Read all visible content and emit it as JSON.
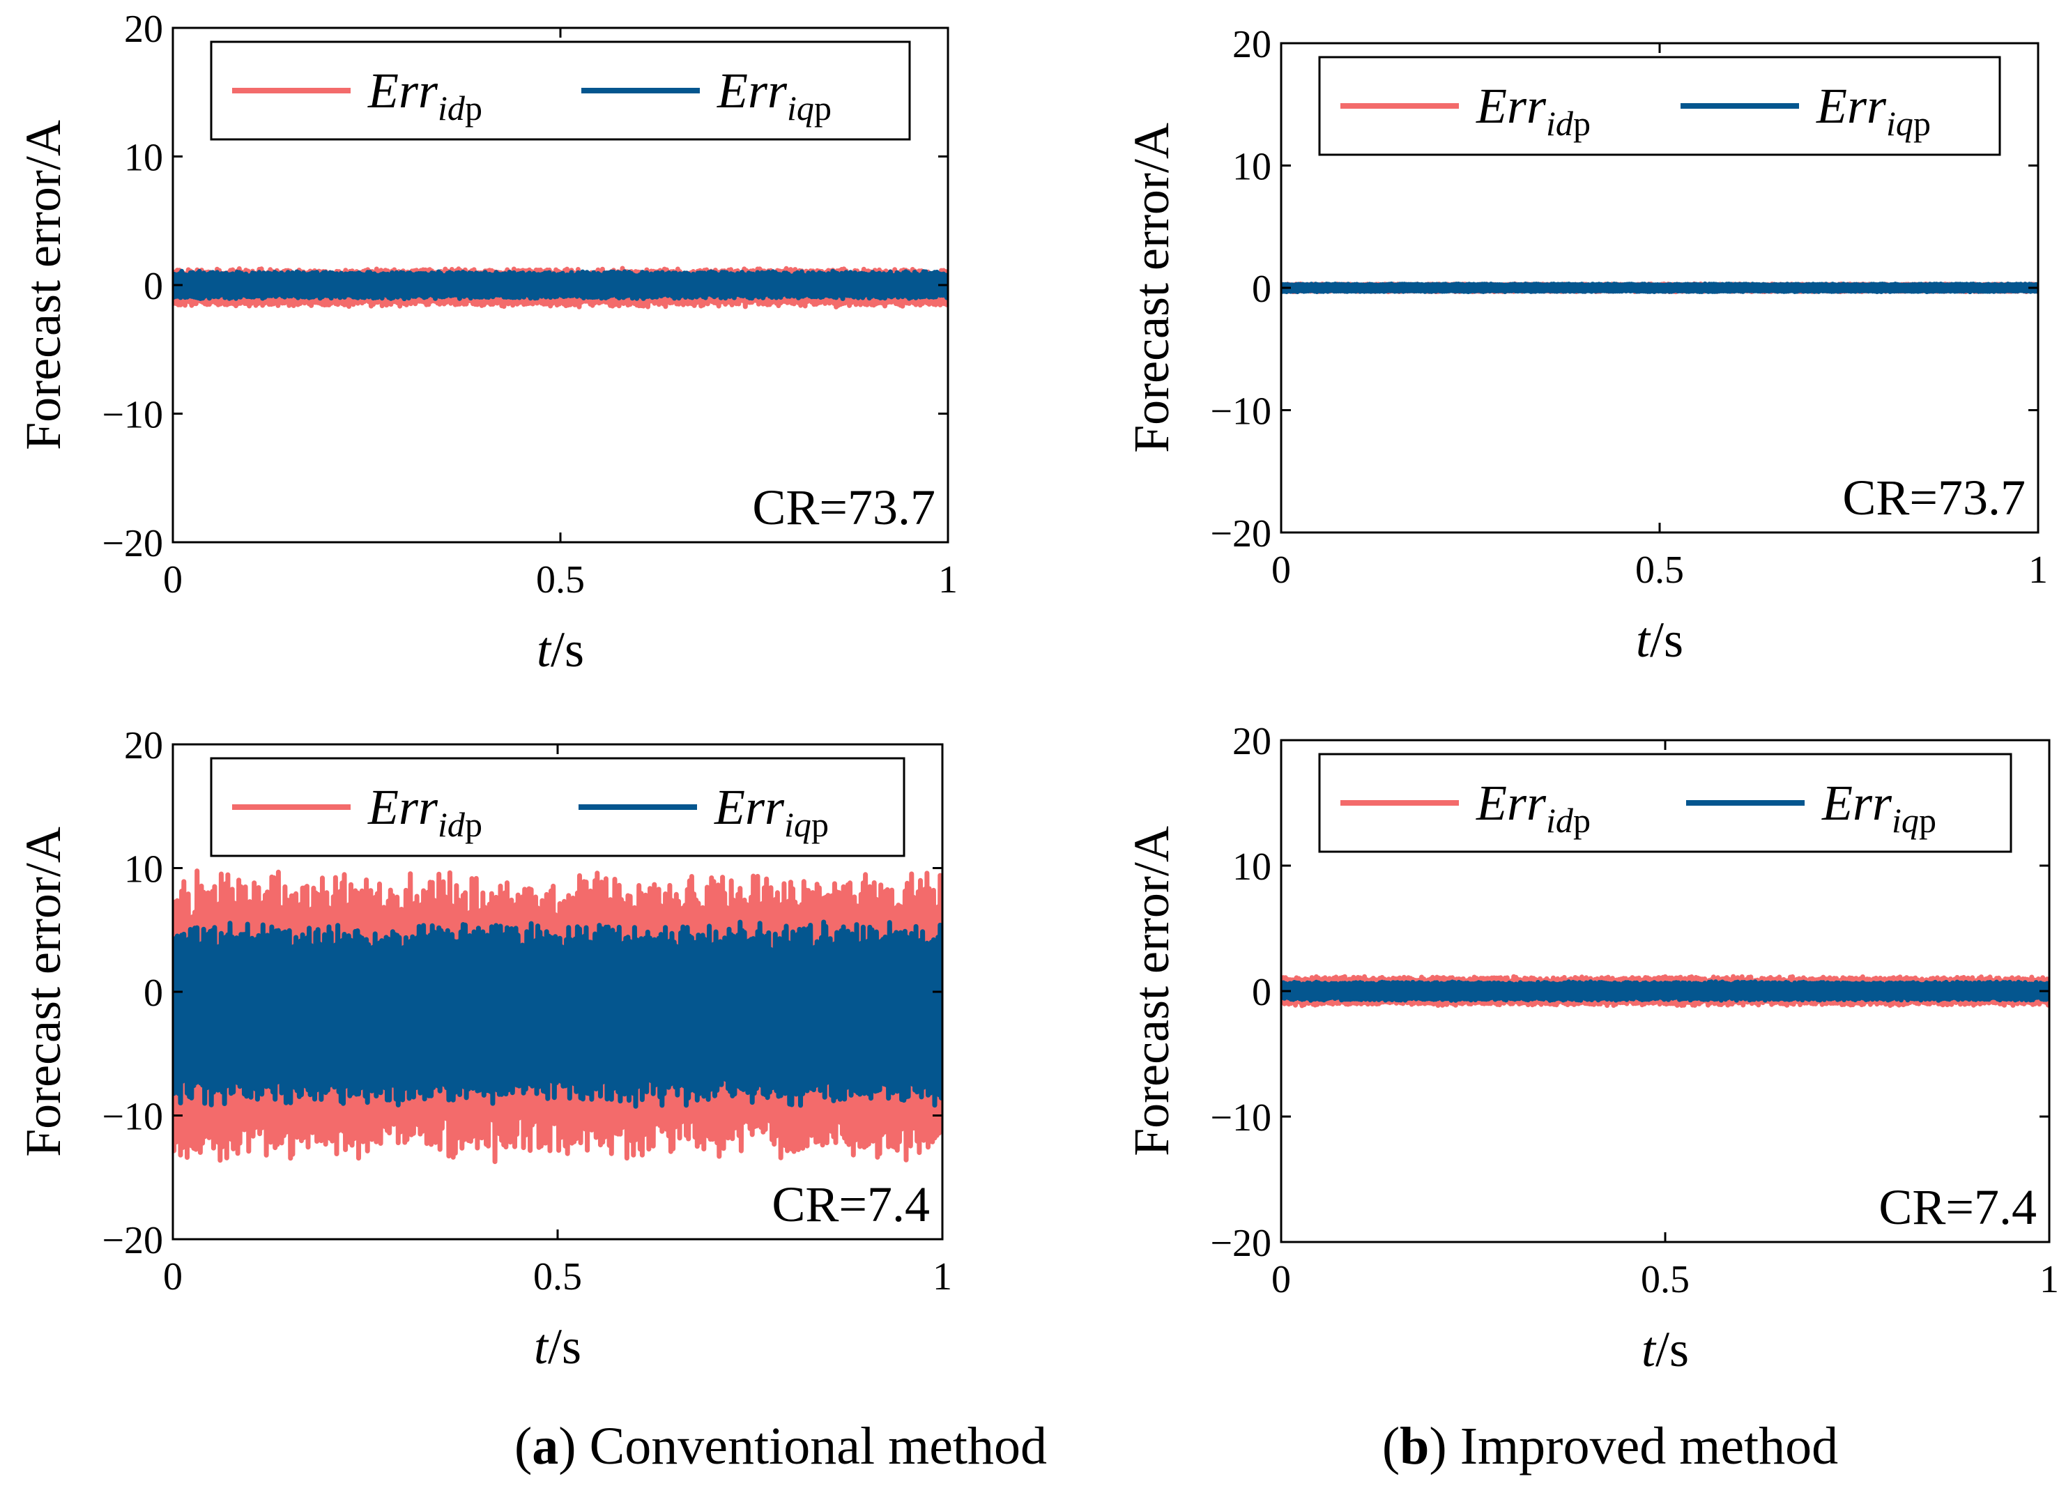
{
  "captions": {
    "a_letter": "a",
    "a_text": " Conventional method",
    "b_letter": "b",
    "b_text": " Improved method"
  },
  "colors": {
    "idp": "#f36b6b",
    "iqp": "#04568f"
  },
  "chart_data": [
    {
      "type": "line",
      "id": "a-top",
      "title": "",
      "xlabel_italic": "t",
      "xlabel_rest": "/s",
      "ylabel": "Forecast error/A",
      "xlim": [
        0,
        1
      ],
      "ylim": [
        -20,
        20
      ],
      "xticks": [
        "0",
        "0.5",
        "1"
      ],
      "yticks": [
        "20",
        "10",
        "0",
        "-10",
        "-20"
      ],
      "annotation": "CR=73.7",
      "legend": {
        "position": "top",
        "entries": [
          {
            "name": "Err",
            "sub": "idp"
          },
          {
            "name": "Err",
            "sub": "iqp"
          }
        ]
      },
      "series": [
        {
          "name": "Err_idp",
          "color": "#f36b6b",
          "amplitude": 1.4,
          "mean": -0.2
        },
        {
          "name": "Err_iqp",
          "color": "#04568f",
          "amplitude": 1.0,
          "mean": 0.0
        }
      ]
    },
    {
      "type": "line",
      "id": "b-top",
      "title": "",
      "xlabel_italic": "t",
      "xlabel_rest": "/s",
      "ylabel": "Forecast error/A",
      "xlim": [
        0,
        1
      ],
      "ylim": [
        -20,
        20
      ],
      "xticks": [
        "0",
        "0.5",
        "1"
      ],
      "yticks": [
        "20",
        "10",
        "0",
        "-10",
        "-20"
      ],
      "annotation": "CR=73.7",
      "legend": {
        "position": "top",
        "entries": [
          {
            "name": "Err",
            "sub": "idp"
          },
          {
            "name": "Err",
            "sub": "iqp"
          }
        ]
      },
      "series": [
        {
          "name": "Err_idp",
          "color": "#f36b6b",
          "amplitude": 0.3,
          "mean": 0.0
        },
        {
          "name": "Err_iqp",
          "color": "#04568f",
          "amplitude": 0.3,
          "mean": 0.0
        }
      ]
    },
    {
      "type": "line",
      "id": "a-bottom",
      "title": "",
      "xlabel_italic": "t",
      "xlabel_rest": "/s",
      "ylabel": "Forecast error/A",
      "xlim": [
        0,
        1
      ],
      "ylim": [
        -20,
        20
      ],
      "xticks": [
        "0",
        "0.5",
        "1"
      ],
      "yticks": [
        "20",
        "10",
        "0",
        "-10",
        "-20"
      ],
      "annotation": "CR=7.4",
      "legend": {
        "position": "top",
        "entries": [
          {
            "name": "Err",
            "sub": "idp"
          },
          {
            "name": "Err",
            "sub": "iqp"
          }
        ]
      },
      "series": [
        {
          "name": "Err_idp",
          "color": "#f36b6b",
          "amplitude": 11.0,
          "mean": -2.0
        },
        {
          "name": "Err_iqp",
          "color": "#04568f",
          "amplitude": 7.0,
          "mean": -1.8
        }
      ]
    },
    {
      "type": "line",
      "id": "b-bottom",
      "title": "",
      "xlabel_italic": "t",
      "xlabel_rest": "/s",
      "ylabel": "Forecast error/A",
      "xlim": [
        0,
        1
      ],
      "ylim": [
        -20,
        20
      ],
      "xticks": [
        "0",
        "0.5",
        "1"
      ],
      "yticks": [
        "20",
        "10",
        "0",
        "-10",
        "-20"
      ],
      "annotation": "CR=7.4",
      "legend": {
        "position": "top",
        "entries": [
          {
            "name": "Err",
            "sub": "idp"
          },
          {
            "name": "Err",
            "sub": "iqp"
          }
        ]
      },
      "series": [
        {
          "name": "Err_idp",
          "color": "#f36b6b",
          "amplitude": 1.1,
          "mean": 0.0
        },
        {
          "name": "Err_iqp",
          "color": "#04568f",
          "amplitude": 0.7,
          "mean": 0.0
        }
      ]
    }
  ]
}
